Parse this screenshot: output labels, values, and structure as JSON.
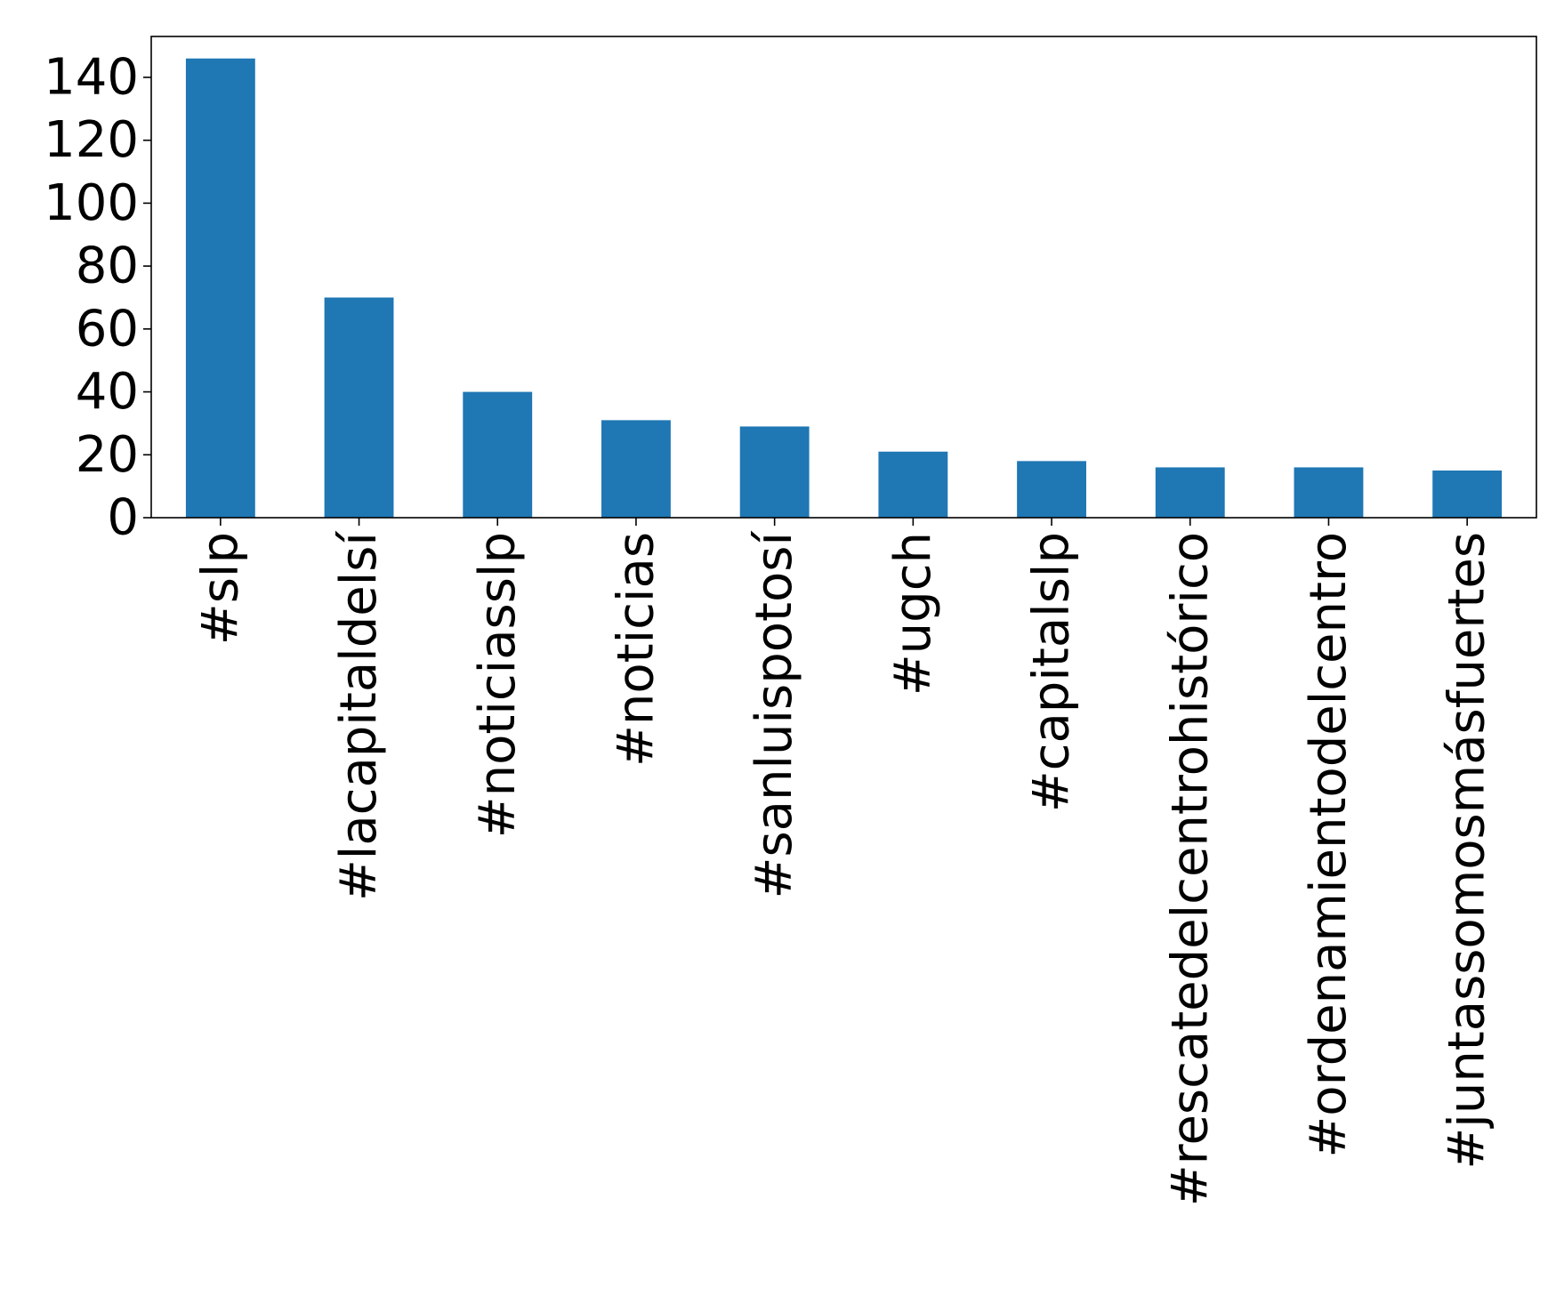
{
  "chart_data": {
    "type": "bar",
    "title": "",
    "xlabel": "",
    "ylabel": "",
    "categories": [
      "#slp",
      "#lacapitaldelsí",
      "#noticiasslp",
      "#noticias",
      "#sanluispotosí",
      "#ugch",
      "#capitalslp",
      "#rescatedelcentrohistórico",
      "#ordenamientodelcentro",
      "#juntassomosmásfuertes"
    ],
    "values": [
      146,
      70,
      40,
      31,
      29,
      21,
      18,
      16,
      16,
      15
    ],
    "ylim": [
      0,
      153
    ],
    "yticks": [
      0,
      20,
      40,
      60,
      80,
      100,
      120,
      140
    ],
    "grid": false,
    "legend": "none",
    "bar_color": "#1f77b4"
  }
}
